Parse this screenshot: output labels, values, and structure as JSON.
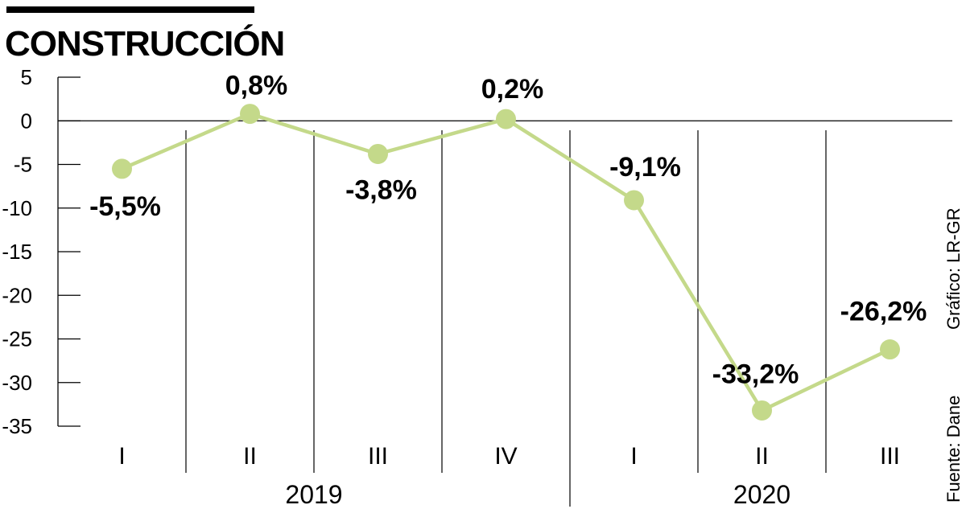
{
  "chart_data": {
    "type": "line",
    "title": "CONSTRUCCIÓN",
    "categories": [
      "I",
      "II",
      "III",
      "IV",
      "I",
      "II",
      "III"
    ],
    "groups": [
      {
        "label": "2019",
        "count": 4
      },
      {
        "label": "2020",
        "count": 3
      }
    ],
    "values": [
      -5.5,
      0.8,
      -3.8,
      0.2,
      -9.1,
      -33.2,
      -26.2
    ],
    "data_labels": [
      "-5,5%",
      "0,8%",
      "-3,8%",
      "0,2%",
      "-9,1%",
      "-33,2%",
      "-26,2%"
    ],
    "label_positions": [
      "below",
      "above",
      "below",
      "above",
      "above",
      "above",
      "above"
    ],
    "yticks": [
      5,
      0,
      -5,
      -10,
      -15,
      -20,
      -25,
      -30,
      -35
    ],
    "ylim": [
      -35,
      5
    ],
    "xlabel": "",
    "ylabel": "",
    "series_color": "#c4d98a"
  },
  "source": "Fuente: Dane",
  "credit": "Gráfico: LR-GR"
}
